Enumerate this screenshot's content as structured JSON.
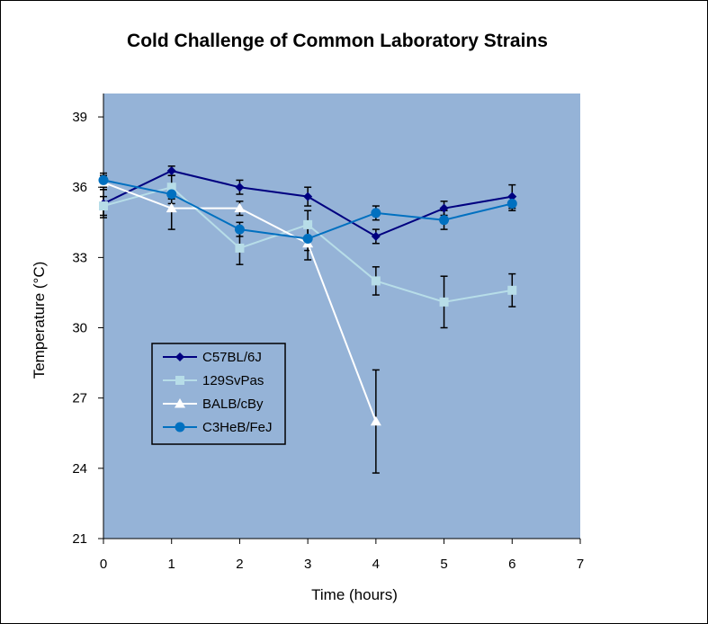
{
  "chart_data": {
    "type": "line",
    "title": "Cold Challenge of Common Laboratory Strains",
    "xlabel": "Time (hours)",
    "ylabel": "Temperature (°C)",
    "xlim": [
      0,
      7
    ],
    "ylim": [
      21,
      40
    ],
    "x_ticks": [
      "0",
      "1",
      "2",
      "3",
      "4",
      "5",
      "6",
      "7"
    ],
    "y_ticks": [
      "21",
      "24",
      "27",
      "30",
      "33",
      "36",
      "39"
    ],
    "grid": false,
    "legend_position": "lower-left",
    "plot_background": "#95b3d7",
    "series": [
      {
        "name": "C57BL/6J",
        "color": "#000080",
        "marker": "diamond",
        "x": [
          0,
          1,
          2,
          3,
          4,
          5,
          6
        ],
        "y": [
          35.3,
          36.7,
          36.0,
          35.6,
          33.9,
          35.1,
          35.6
        ],
        "err": [
          0.6,
          0.2,
          0.3,
          0.4,
          0.3,
          0.3,
          0.5
        ]
      },
      {
        "name": "129SvPas",
        "color": "#b7dde8",
        "marker": "square",
        "x": [
          0,
          1,
          2,
          3,
          4,
          5,
          6
        ],
        "y": [
          35.2,
          36.0,
          33.4,
          34.4,
          32.0,
          31.1,
          31.6
        ],
        "err": [
          0.4,
          0.5,
          0.7,
          0.6,
          0.6,
          1.1,
          0.7
        ]
      },
      {
        "name": "BALB/cBy",
        "color": "#ffffff",
        "marker": "triangle",
        "x": [
          0,
          1,
          2,
          3,
          4
        ],
        "y": [
          36.2,
          35.1,
          35.1,
          33.6,
          26.0
        ],
        "err": [
          0.3,
          0.9,
          0.3,
          0.7,
          2.2
        ]
      },
      {
        "name": "C3HeB/FeJ",
        "color": "#0070c0",
        "marker": "circle",
        "x": [
          0,
          1,
          2,
          3,
          4,
          5,
          6
        ],
        "y": [
          36.3,
          35.7,
          34.2,
          33.8,
          34.9,
          34.6,
          35.3
        ],
        "err": [
          0.3,
          0.4,
          0.3,
          0.5,
          0.3,
          0.4,
          0.3
        ]
      }
    ]
  }
}
